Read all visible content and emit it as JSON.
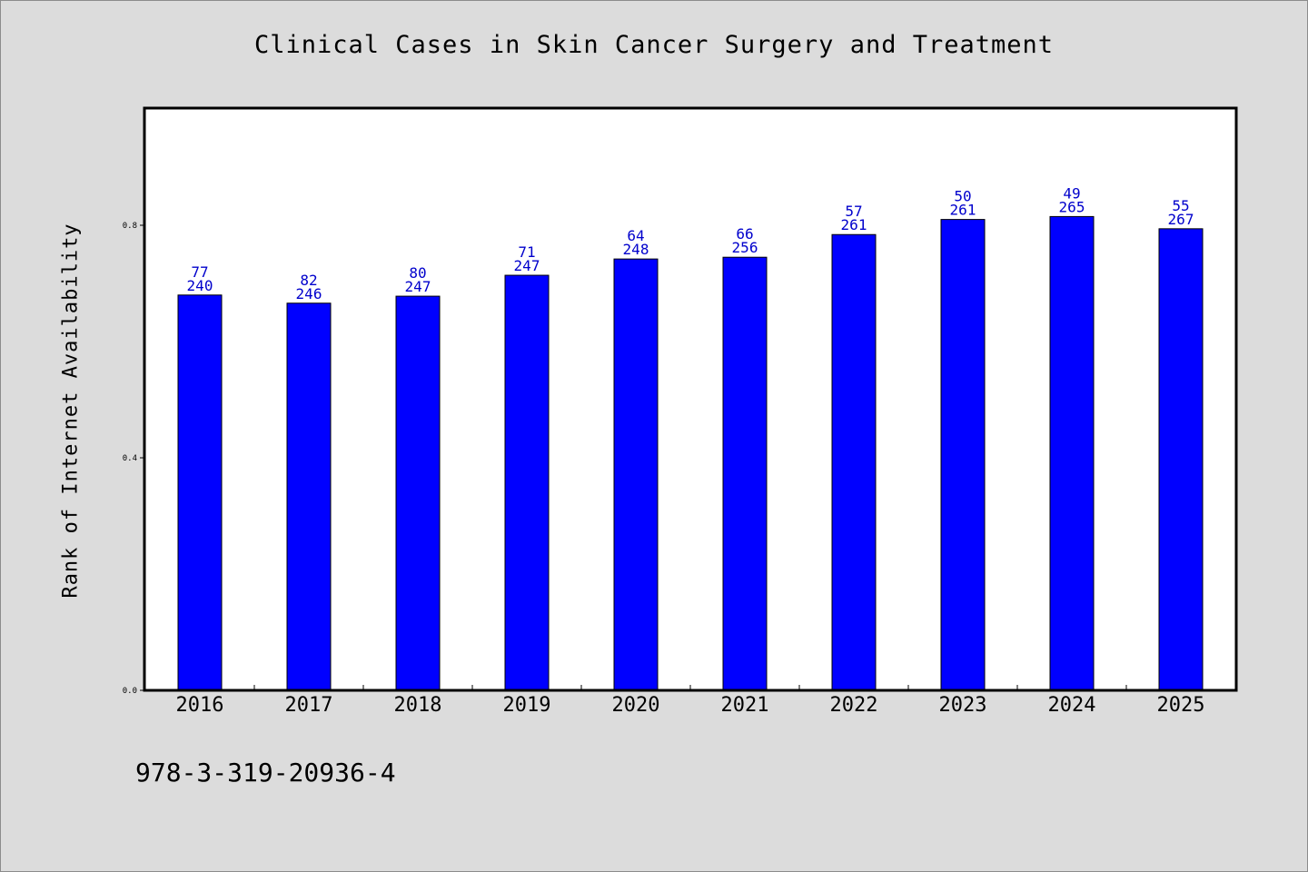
{
  "chart_data": {
    "type": "bar",
    "title": "Clinical Cases in Skin Cancer Surgery and Treatment",
    "xlabel": "",
    "ylabel": "Rank of Internet Availability",
    "categories": [
      "2016",
      "2017",
      "2018",
      "2019",
      "2020",
      "2021",
      "2022",
      "2023",
      "2024",
      "2025"
    ],
    "values": [
      0.68,
      0.666,
      0.678,
      0.714,
      0.742,
      0.745,
      0.784,
      0.81,
      0.815,
      0.794
    ],
    "labels_top": [
      "77",
      "82",
      "80",
      "71",
      "64",
      "66",
      "57",
      "50",
      "49",
      "55"
    ],
    "labels_bottom": [
      "240",
      "246",
      "247",
      "247",
      "248",
      "256",
      "261",
      "261",
      "265",
      "267"
    ],
    "ylim": [
      0,
      1.0
    ],
    "yticks": [
      0.0,
      0.4,
      0.8
    ],
    "ytick_labels": [
      "0.0",
      "0.4",
      "0.8"
    ],
    "grid": false,
    "bar_color": "#0000ff",
    "label_color": "#0000cc"
  },
  "footer": {
    "code": "978-3-319-20936-4"
  }
}
